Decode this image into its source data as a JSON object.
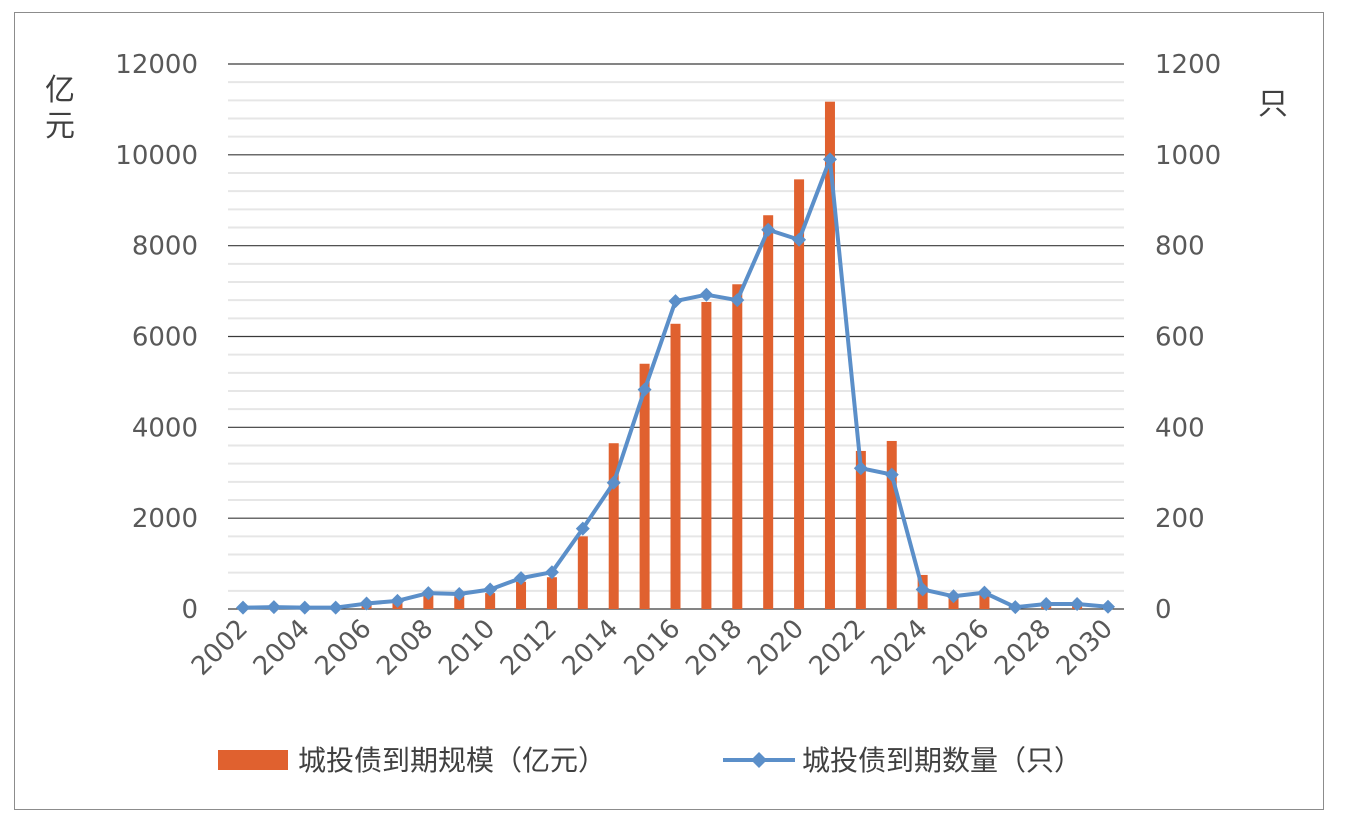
{
  "chart_data": {
    "type": "bar",
    "x": [
      2002,
      2003,
      2004,
      2005,
      2006,
      2007,
      2008,
      2009,
      2010,
      2011,
      2012,
      2013,
      2014,
      2015,
      2016,
      2017,
      2018,
      2019,
      2020,
      2021,
      2022,
      2023,
      2024,
      2025,
      2026,
      2027,
      2028,
      2029,
      2030
    ],
    "x_tick_labels": [
      "2002",
      "2004",
      "2006",
      "2008",
      "2010",
      "2012",
      "2014",
      "2016",
      "2018",
      "2020",
      "2022",
      "2024",
      "2026",
      "2028",
      "2030"
    ],
    "series": [
      {
        "name": "城投债到期规模（亿元）",
        "type": "bar",
        "axis": "left",
        "color": "#E0612F",
        "values": [
          20,
          20,
          20,
          20,
          100,
          150,
          300,
          280,
          350,
          600,
          700,
          1600,
          3650,
          5400,
          6280,
          6760,
          7150,
          8670,
          9460,
          11170,
          3480,
          3700,
          750,
          250,
          350,
          60,
          90,
          90,
          60
        ]
      },
      {
        "name": "城投债到期数量（只）",
        "type": "line",
        "axis": "right",
        "color": "#5B8FC9",
        "marker": "diamond",
        "values": [
          3,
          4,
          3,
          3,
          12,
          18,
          35,
          33,
          43,
          68,
          81,
          177,
          278,
          483,
          678,
          692,
          680,
          835,
          813,
          990,
          310,
          296,
          43,
          28,
          36,
          4,
          11,
          11,
          5
        ]
      }
    ],
    "y_left": {
      "label": "亿元",
      "ylim": [
        0,
        12000
      ],
      "ticks": [
        "0",
        "2000",
        "4000",
        "6000",
        "8000",
        "10000",
        "12000"
      ]
    },
    "y_right": {
      "label": "只",
      "ylim": [
        0,
        1200
      ],
      "ticks": [
        "0",
        "200",
        "400",
        "600",
        "800",
        "1000",
        "1200"
      ]
    },
    "grid": true,
    "legend_position": "bottom"
  }
}
